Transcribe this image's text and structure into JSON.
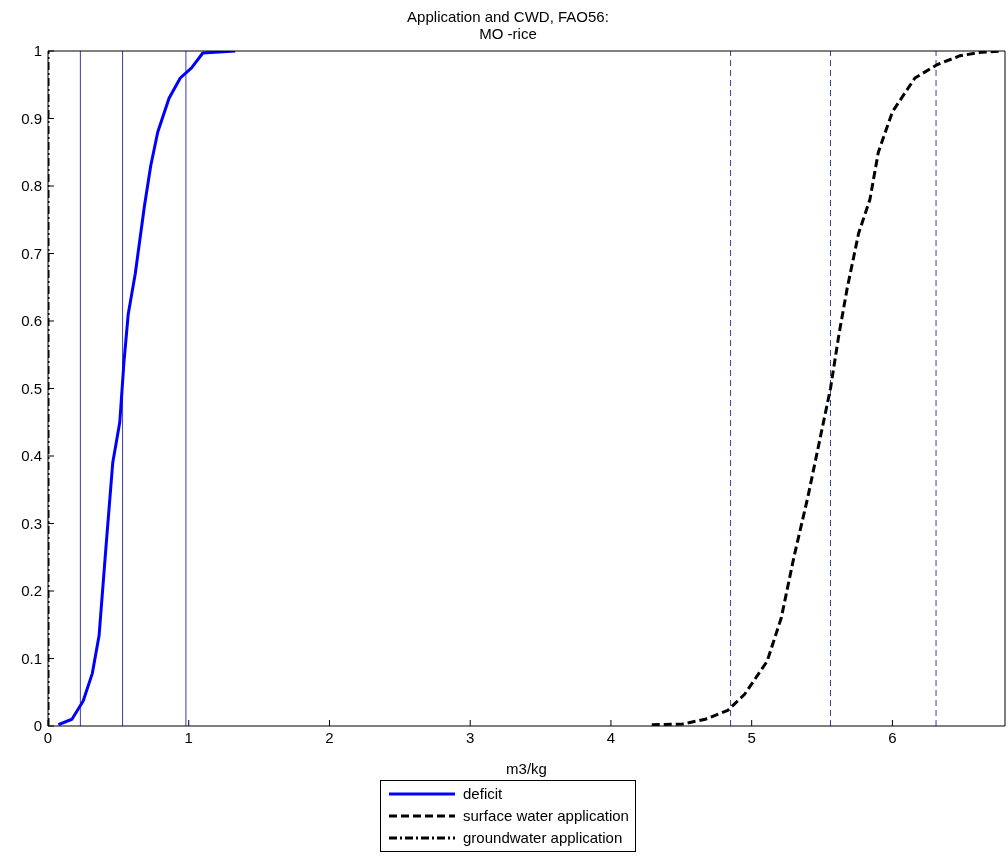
{
  "chart_data": {
    "type": "line",
    "title": "Application and CWD, FAO56:",
    "subtitle": "MO -rice",
    "xlabel": "m3/kg",
    "xlim": [
      0,
      6.8
    ],
    "xticks": [
      0,
      1,
      2,
      3,
      4,
      5,
      6
    ],
    "ylim": [
      0,
      1
    ],
    "yticks": [
      0,
      0.1,
      0.2,
      0.3,
      0.4,
      0.5,
      0.6,
      0.7,
      0.8,
      0.9,
      1
    ],
    "grid": false,
    "legend": "bottom",
    "marker": "none",
    "series": [
      {
        "name": "deficit",
        "color": "#0000ff",
        "line_style": "solid",
        "x": [
          0.074,
          0.17,
          0.25,
          0.315,
          0.363,
          0.41,
          0.46,
          0.51,
          0.54,
          0.57,
          0.62,
          0.685,
          0.73,
          0.78,
          0.86,
          0.94,
          1.02,
          1.1,
          1.33
        ],
        "values": [
          0.002,
          0.01,
          0.037,
          0.078,
          0.134,
          0.26,
          0.39,
          0.45,
          0.54,
          0.61,
          0.67,
          0.77,
          0.83,
          0.88,
          0.93,
          0.96,
          0.975,
          0.997,
          1
        ]
      },
      {
        "name": "surface water application",
        "color": "#000000",
        "line_style": "dashed",
        "x": [
          4.29,
          4.51,
          4.67,
          4.83,
          4.95,
          5.11,
          5.21,
          5.3,
          5.4,
          5.49,
          5.56,
          5.62,
          5.68,
          5.76,
          5.84,
          5.9,
          6.0,
          6.16,
          6.32,
          6.48,
          6.63,
          6.78
        ],
        "values": [
          0.002,
          0.003,
          0.01,
          0.023,
          0.047,
          0.096,
          0.16,
          0.25,
          0.34,
          0.43,
          0.5,
          0.58,
          0.65,
          0.73,
          0.78,
          0.85,
          0.91,
          0.96,
          0.98,
          0.993,
          0.998,
          1
        ]
      },
      {
        "name": "groundwater application",
        "color": "#000000",
        "line_style": "dashdot",
        "x": [
          0,
          0,
          0,
          0,
          0
        ],
        "values": [
          0,
          0.25,
          0.5,
          0.75,
          1
        ]
      }
    ],
    "ref_lines": [
      {
        "axis": "x",
        "value": 0.23,
        "color": "#3c3ca0",
        "line_style": "solid"
      },
      {
        "axis": "x",
        "value": 0.53,
        "color": "#3c3ca0",
        "line_style": "solid"
      },
      {
        "axis": "x",
        "value": 0.98,
        "color": "#3c3ca0",
        "line_style": "solid"
      },
      {
        "axis": "x",
        "value": 4.85,
        "color": "#3c3ca0",
        "line_style": "dashed"
      },
      {
        "axis": "x",
        "value": 5.56,
        "color": "#3c3ca0",
        "line_style": "dashed"
      },
      {
        "axis": "x",
        "value": 6.31,
        "color": "#3c3ca0",
        "line_style": "dashed"
      }
    ]
  }
}
